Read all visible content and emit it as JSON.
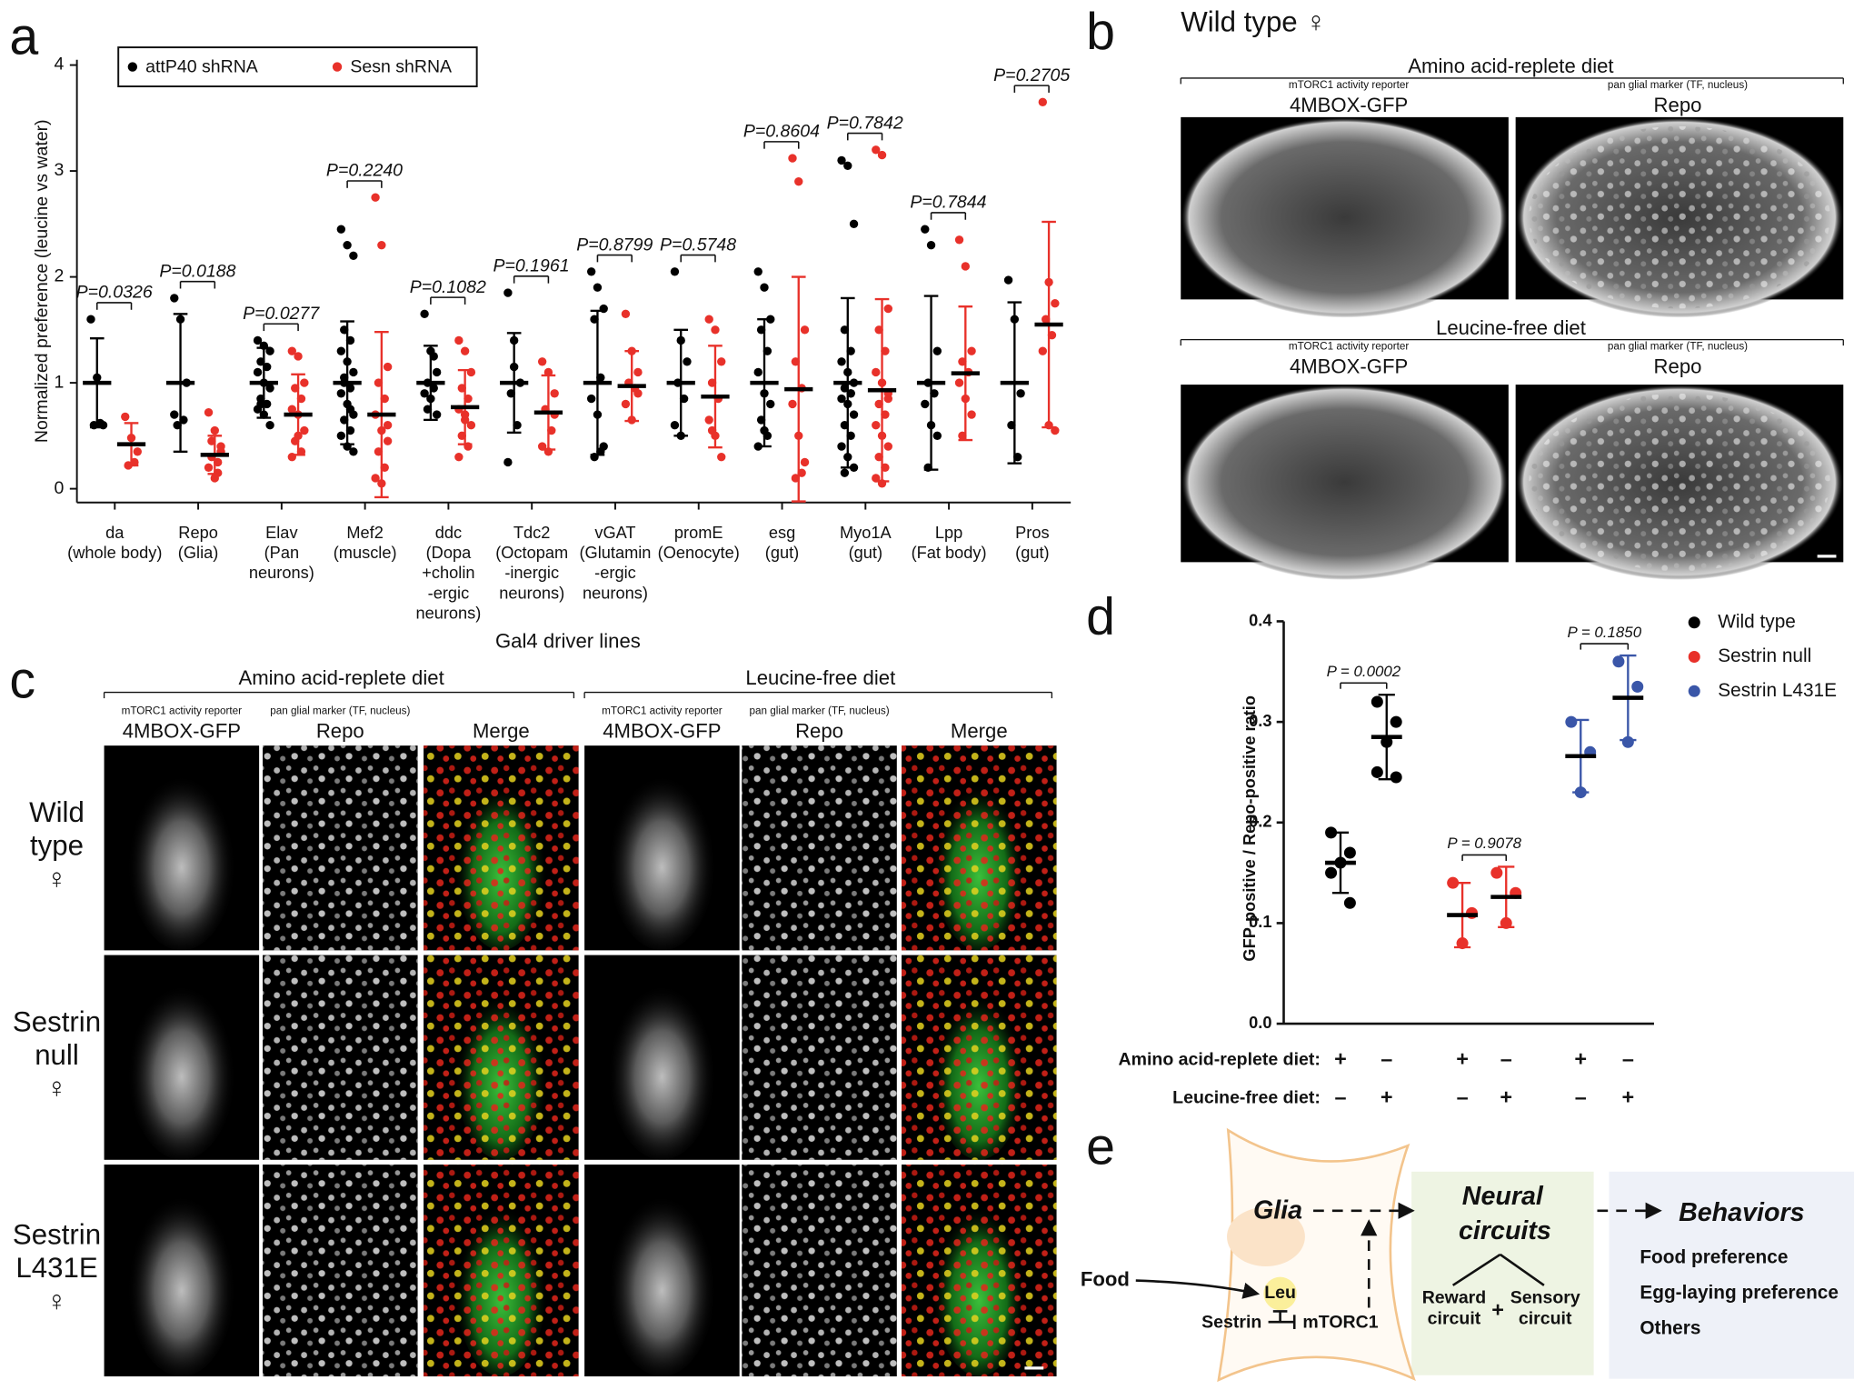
{
  "panel_labels": [
    "a",
    "b",
    "c",
    "d",
    "e"
  ],
  "chart_data": [
    {
      "type": "dot_plot",
      "y_label": "Normalized preference (leucine vs water)",
      "x_label": "Gal4 driver lines",
      "categories": [
        [
          "da",
          "(whole body)"
        ],
        [
          "Repo",
          "(Glia)"
        ],
        [
          "Elav",
          "(Pan",
          "neurons)"
        ],
        [
          "Mef2",
          "(muscle)"
        ],
        [
          "ddc",
          "(Dopa",
          "+cholin",
          "-ergic",
          "neurons)"
        ],
        [
          "Tdc2",
          "(Octopam",
          "-inergic",
          "neurons)"
        ],
        [
          "vGAT",
          "(Glutamin",
          "-ergic",
          "neurons)"
        ],
        [
          "promE",
          "(Oenocyte)"
        ],
        [
          "esg",
          "(gut)"
        ],
        [
          "Myo1A",
          "(gut)"
        ],
        [
          "Lpp",
          "(Fat body)"
        ],
        [
          "Pros",
          "(gut)"
        ]
      ],
      "p_values": [
        "P=0.0326",
        "P=0.0188",
        "P=0.0277",
        "P=0.2240",
        "P=0.1082",
        "P=0.1961",
        "P=0.8799",
        "P=0.5748",
        "P=0.8604",
        "P=0.7842",
        "P=0.7844",
        "P=0.2705"
      ],
      "ylim": [
        -0.13,
        4.05
      ],
      "yticks": [
        0,
        1,
        2,
        3,
        4
      ],
      "series": [
        {
          "name": "attP40 shRNA",
          "color": "#000000",
          "means": [
            1,
            1,
            1,
            1,
            1,
            1,
            1,
            1,
            1,
            1,
            1,
            1
          ],
          "sds": [
            0.42,
            0.65,
            0.33,
            0.58,
            0.35,
            0.47,
            0.68,
            0.5,
            0.6,
            0.8,
            0.82,
            0.76
          ],
          "points": [
            [
              1.6,
              1.05,
              0.6,
              0.6,
              0.62
            ],
            [
              1.8,
              1.6,
              1.0,
              0.6,
              0.65,
              0.7
            ],
            [
              1.4,
              1.35,
              1.3,
              1.2,
              1.15,
              1.1,
              1.0,
              0.95,
              0.85,
              0.8,
              0.75,
              0.7,
              0.6,
              0.8
            ],
            [
              2.45,
              2.3,
              2.2,
              1.5,
              1.4,
              1.3,
              1.2,
              1.1,
              1.0,
              0.95,
              0.9,
              0.8,
              0.7,
              0.65,
              0.55,
              0.5,
              0.4,
              0.35,
              1.05,
              0.75
            ],
            [
              1.65,
              1.3,
              1.1,
              1.0,
              0.95,
              0.9,
              0.85,
              0.7,
              0.75,
              1.25
            ],
            [
              1.85,
              1.4,
              1.0,
              0.9,
              0.6,
              0.25,
              1.15
            ],
            [
              2.05,
              1.9,
              1.7,
              1.6,
              1.05,
              0.85,
              0.7,
              0.4,
              0.3,
              0.35
            ],
            [
              2.05,
              1.4,
              1.2,
              1.0,
              0.85,
              0.6,
              0.5
            ],
            [
              2.05,
              1.9,
              1.6,
              1.5,
              1.3,
              1.1,
              0.9,
              0.8,
              0.65,
              0.5,
              0.4,
              0.55
            ],
            [
              3.1,
              3.05,
              2.5,
              1.5,
              1.3,
              1.2,
              1.1,
              1.0,
              0.95,
              0.9,
              0.85,
              0.8,
              0.7,
              0.6,
              0.5,
              0.4,
              0.3,
              0.2,
              0.15,
              0.9
            ],
            [
              2.45,
              2.3,
              1.3,
              1.0,
              0.9,
              0.8,
              0.6,
              0.5,
              0.2
            ],
            [
              1.97,
              1.6,
              0.9,
              0.6,
              0.3
            ]
          ]
        },
        {
          "name": "Sesn shRNA",
          "color": "#e8312a",
          "means": [
            0.42,
            0.32,
            0.7,
            0.7,
            0.77,
            0.72,
            0.97,
            0.87,
            0.94,
            0.93,
            1.09,
            1.55
          ],
          "sds": [
            0.2,
            0.18,
            0.38,
            0.78,
            0.35,
            0.35,
            0.33,
            0.48,
            1.06,
            0.86,
            0.63,
            0.97
          ],
          "points": [
            [
              0.68,
              0.48,
              0.35,
              0.22,
              0.25
            ],
            [
              0.72,
              0.55,
              0.4,
              0.3,
              0.25,
              0.2,
              0.1,
              0.35,
              0.45,
              0.15
            ],
            [
              1.3,
              1.25,
              1.0,
              0.95,
              0.85,
              0.75,
              0.7,
              0.55,
              0.45,
              0.35,
              0.3,
              0.5
            ],
            [
              2.75,
              2.3,
              1.15,
              1.0,
              0.85,
              0.7,
              0.55,
              0.45,
              0.35,
              0.2,
              0.1,
              0.05,
              0.6
            ],
            [
              1.4,
              1.3,
              1.1,
              0.95,
              0.85,
              0.75,
              0.7,
              0.6,
              0.5,
              0.4,
              0.3,
              0.65
            ],
            [
              1.2,
              1.1,
              0.9,
              0.75,
              0.55,
              0.4,
              0.35,
              0.7
            ],
            [
              1.65,
              1.3,
              1.1,
              1.0,
              0.95,
              0.8,
              0.65,
              0.9
            ],
            [
              1.6,
              1.5,
              1.2,
              1.0,
              0.85,
              0.65,
              0.5,
              0.3,
              0.55
            ],
            [
              3.12,
              2.9,
              1.5,
              1.2,
              0.95,
              0.8,
              0.5,
              0.25,
              0.1,
              0.15
            ],
            [
              3.2,
              3.15,
              1.7,
              1.5,
              1.3,
              1.1,
              1.0,
              0.9,
              0.8,
              0.7,
              0.6,
              0.5,
              0.4,
              0.3,
              0.2,
              0.1,
              0.05,
              0.85
            ],
            [
              2.35,
              2.1,
              1.3,
              1.2,
              1.1,
              1.0,
              0.85,
              0.7,
              0.5
            ],
            [
              3.65,
              1.95,
              1.75,
              1.6,
              1.45,
              1.3,
              0.6,
              0.55
            ]
          ]
        }
      ]
    },
    {
      "type": "paired_dot_plot",
      "y_label": "GFP-positive / Repo-positive ratio",
      "ylim": [
        0,
        0.4
      ],
      "yticks": [
        {
          "value": 0,
          "label": "0.0"
        },
        0.1,
        0.2,
        0.3,
        0.4
      ],
      "conditions": [
        {
          "label": "Amino acid-replete diet:",
          "signs": [
            "+",
            "–",
            "+",
            "–",
            "+",
            "–"
          ]
        },
        {
          "label": "Leucine-free diet:",
          "signs": [
            "–",
            "+",
            "–",
            "+",
            "–",
            "+"
          ]
        }
      ],
      "series": [
        {
          "name": "Wild type",
          "color": "#000000",
          "means": [
            0.16,
            0.285
          ],
          "sds": [
            0.03,
            0.042
          ],
          "points": [
            [
              0.19,
              0.17,
              0.16,
              0.15,
              0.12
            ],
            [
              0.32,
              0.3,
              0.28,
              0.25,
              0.245
            ]
          ],
          "p_value": "P = 0.0002"
        },
        {
          "name": "Sestrin null",
          "color": "#e8312a",
          "means": [
            0.108,
            0.126
          ],
          "sds": [
            0.032,
            0.03
          ],
          "points": [
            [
              0.14,
              0.11,
              0.08
            ],
            [
              0.15,
              0.13,
              0.1
            ]
          ],
          "p_value": "P = 0.9078"
        },
        {
          "name": "Sestrin L431E",
          "color": "#3a56a8",
          "means": [
            0.266,
            0.324
          ],
          "sds": [
            0.036,
            0.042
          ],
          "points": [
            [
              0.3,
              0.27,
              0.23
            ],
            [
              0.36,
              0.335,
              0.28
            ]
          ],
          "p_value": "P = 0.1850"
        }
      ]
    }
  ],
  "panel_b": {
    "heading": "Wild type ♀",
    "sections": [
      {
        "diet": "Amino acid-replete diet",
        "channels": [
          {
            "note": "mTORC1 activity reporter",
            "name": "4MBOX-GFP"
          },
          {
            "note": "pan glial marker (TF, nucleus)",
            "name": "Repo"
          }
        ]
      },
      {
        "diet": "Leucine-free diet",
        "channels": [
          {
            "note": "mTORC1 activity reporter",
            "name": "4MBOX-GFP"
          },
          {
            "note": "pan glial marker (TF, nucleus)",
            "name": "Repo"
          }
        ]
      }
    ]
  },
  "panel_c": {
    "diets": [
      {
        "diet": "Amino acid-replete diet",
        "channels": [
          {
            "note": "mTORC1 activity reporter",
            "name": "4MBOX-GFP"
          },
          {
            "note": "pan glial marker (TF, nucleus)",
            "name": "Repo"
          },
          {
            "name": "Merge"
          }
        ]
      },
      {
        "diet": "Leucine-free diet",
        "channels": [
          {
            "note": "mTORC1 activity reporter",
            "name": "4MBOX-GFP"
          },
          {
            "note": "pan glial marker (TF, nucleus)",
            "name": "Repo"
          },
          {
            "name": "Merge"
          }
        ]
      }
    ],
    "rows": [
      [
        "Wild",
        "type",
        "♀"
      ],
      [
        "Sestrin",
        "null",
        "♀"
      ],
      [
        "Sestrin",
        "L431E",
        "♀"
      ]
    ]
  },
  "panel_e": {
    "glia": "Glia",
    "neural": [
      "Neural",
      "circuits"
    ],
    "behaviors": "Behaviors",
    "behavior_items": [
      "Food preference",
      "Egg-laying preference",
      "Others"
    ],
    "reward": [
      "Reward",
      "circuit"
    ],
    "plus": "+",
    "sensory": [
      "Sensory",
      "circuit"
    ],
    "food": "Food",
    "leu": "Leu",
    "sestrin": "Sestrin",
    "mtorc1": "mTORC1"
  }
}
